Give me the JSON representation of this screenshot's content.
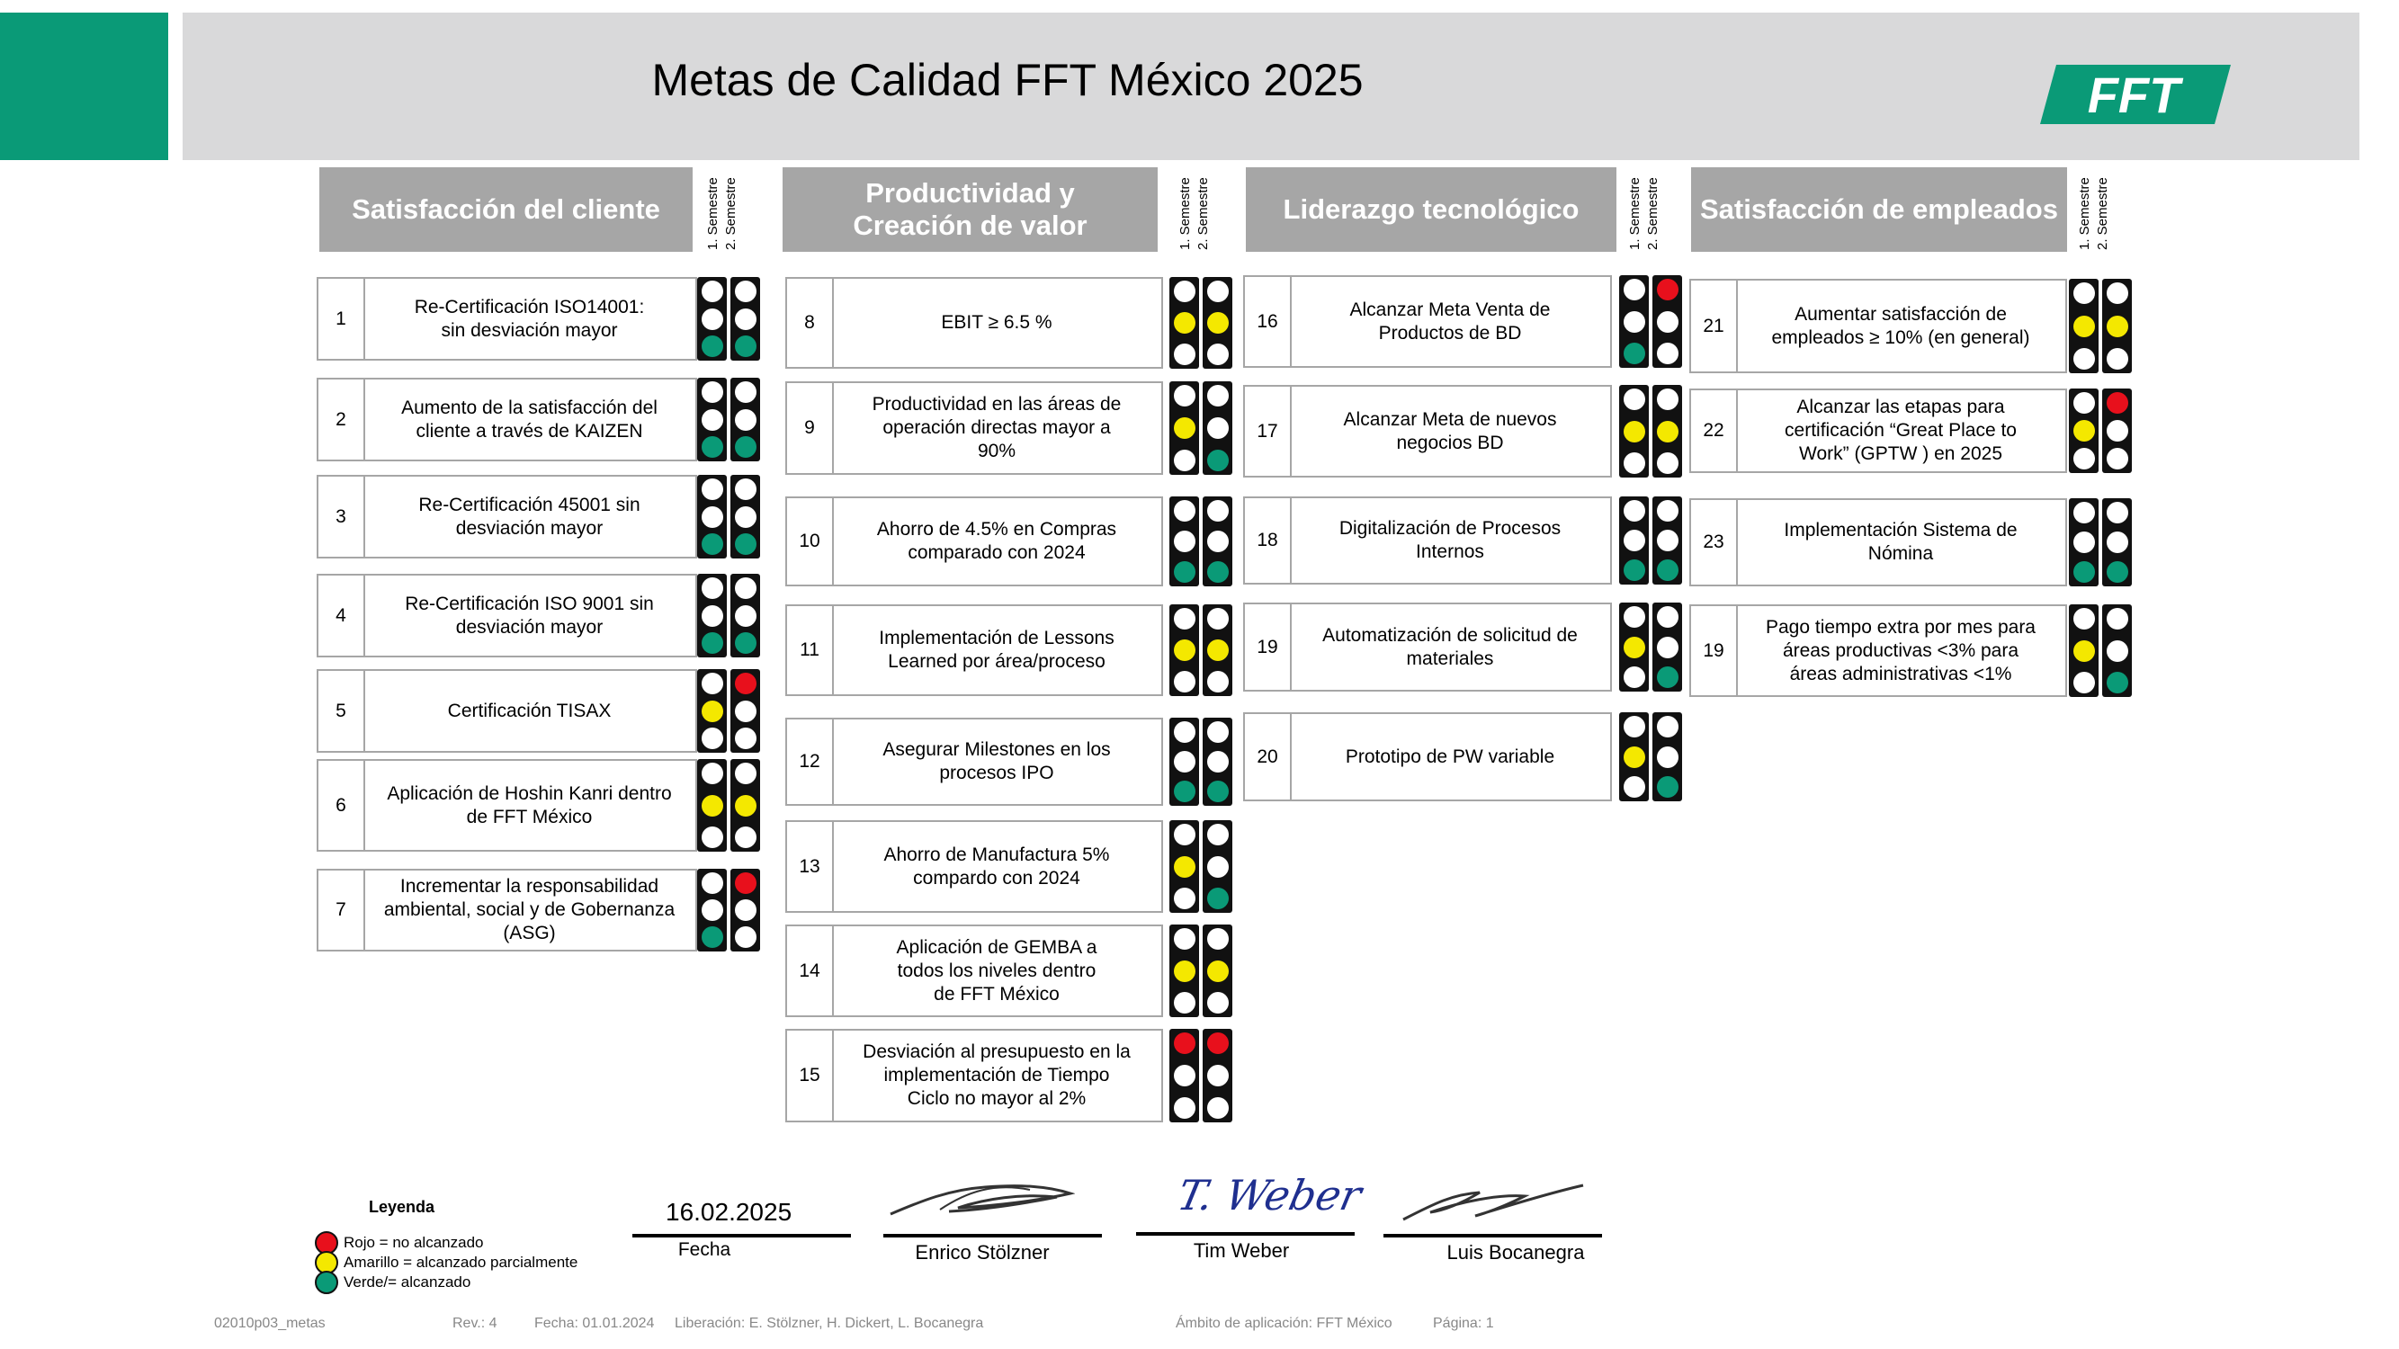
{
  "title": "Metas de Calidad FFT México 2025",
  "logo_text": "FFT",
  "semester_labels": [
    "1. Semestre",
    "2. Semestre"
  ],
  "colors": {
    "red": "#e8101c",
    "yellow": "#f4e800",
    "green": "#0a9a77",
    "brand": "#0a9a77",
    "header_gray": "#a6a6a6"
  },
  "columns": [
    {
      "title": "Satisfacción del cliente",
      "items": [
        {
          "num": "1",
          "text": "Re-Certificación ISO14001:\nsin desviación mayor",
          "s1": "green",
          "s2": "green"
        },
        {
          "num": "2",
          "text": "Aumento de la satisfacción del\ncliente a través de KAIZEN",
          "s1": "green",
          "s2": "green"
        },
        {
          "num": "3",
          "text": "Re-Certificación 45001 sin\ndesviación mayor",
          "s1": "green",
          "s2": "green"
        },
        {
          "num": "4",
          "text": "Re-Certificación ISO 9001 sin\ndesviación mayor",
          "s1": "green",
          "s2": "green"
        },
        {
          "num": "5",
          "text": "Certificación TISAX",
          "s1": "yellow",
          "s2": "red"
        },
        {
          "num": "6",
          "text": "Aplicación de Hoshin Kanri dentro\nde FFT México",
          "s1": "yellow",
          "s2": "yellow"
        },
        {
          "num": "7",
          "text": "Incrementar la responsabilidad\nambiental, social y de Gobernanza\n(ASG)",
          "s1": "green",
          "s2": "red"
        }
      ]
    },
    {
      "title": "Productividad y\nCreación de valor",
      "items": [
        {
          "num": "8",
          "text": "EBIT ≥ 6.5 %",
          "s1": "yellow",
          "s2": "yellow"
        },
        {
          "num": "9",
          "text": "Productividad en las áreas de\noperación directas mayor a\n90%",
          "s1": "yellow",
          "s2": "green"
        },
        {
          "num": "10",
          "text": "Ahorro de 4.5% en Compras\ncomparado con 2024",
          "s1": "green",
          "s2": "green"
        },
        {
          "num": "11",
          "text": "Implementación de Lessons\nLearned por área/proceso",
          "s1": "yellow",
          "s2": "yellow"
        },
        {
          "num": "12",
          "text": "Asegurar Milestones en los\nprocesos IPO",
          "s1": "green",
          "s2": "green"
        },
        {
          "num": "13",
          "text": "Ahorro de Manufactura 5%\ncompardo con 2024",
          "s1": "yellow",
          "s2": "green"
        },
        {
          "num": "14",
          "text": "Aplicación de GEMBA a\ntodos los niveles dentro\nde FFT México",
          "s1": "yellow",
          "s2": "yellow"
        },
        {
          "num": "15",
          "text": "Desviación al presupuesto en la\nimplementación de Tiempo\nCiclo no mayor al 2%",
          "s1": "red",
          "s2": "red"
        }
      ]
    },
    {
      "title": "Liderazgo tecnológico",
      "items": [
        {
          "num": "16",
          "text": "Alcanzar Meta Venta de\nProductos de BD",
          "s1": "green",
          "s2": "red"
        },
        {
          "num": "17",
          "text": "Alcanzar Meta de nuevos\nnegocios BD",
          "s1": "yellow",
          "s2": "yellow"
        },
        {
          "num": "18",
          "text": "Digitalización de Procesos\nInternos",
          "s1": "green",
          "s2": "green"
        },
        {
          "num": "19",
          "text": "Automatización de solicitud de\nmateriales",
          "s1": "yellow",
          "s2": "green"
        },
        {
          "num": "20",
          "text": "Prototipo de PW variable",
          "s1": "yellow",
          "s2": "green"
        }
      ]
    },
    {
      "title": "Satisfacción de empleados",
      "items": [
        {
          "num": "21",
          "text": "Aumentar satisfacción de\nempleados ≥ 10% (en general)",
          "s1": "yellow",
          "s2": "yellow"
        },
        {
          "num": "22",
          "text": "Alcanzar las etapas para\ncertificación “Great Place to\nWork” (GPTW ) en 2025",
          "s1": "yellow",
          "s2": "red"
        },
        {
          "num": "23",
          "text": "Implementación Sistema de\nNómina",
          "s1": "green",
          "s2": "green"
        },
        {
          "num": "19",
          "text": "Pago tiempo extra por mes para\náreas productivas <3% para\náreas administrativas <1%",
          "s1": "yellow",
          "s2": "green"
        }
      ]
    }
  ],
  "legend": {
    "title": "Leyenda",
    "items": [
      {
        "color": "red",
        "label": "Rojo = no alcanzado"
      },
      {
        "color": "yellow",
        "label": "Amarillo = alcanzado parcialmente"
      },
      {
        "color": "green",
        "label": "Verde/= alcanzado"
      }
    ]
  },
  "signatures": {
    "date_value": "16.02.2025",
    "date_label": "Fecha",
    "signers": [
      "Enrico Stölzner",
      "Tim Weber",
      "Luis Bocanegra"
    ],
    "tim_weber_script": "T. Weber"
  },
  "footer": {
    "doc_id": "02010p03_metas",
    "rev": "Rev.: 4",
    "fecha": "Fecha: 01.01.2024",
    "liberacion": "Liberación: E. Stölzner, H. Dickert, L. Bocanegra",
    "ambito": "Ámbito de aplicación: FFT México",
    "pagina": "Página: 1"
  }
}
